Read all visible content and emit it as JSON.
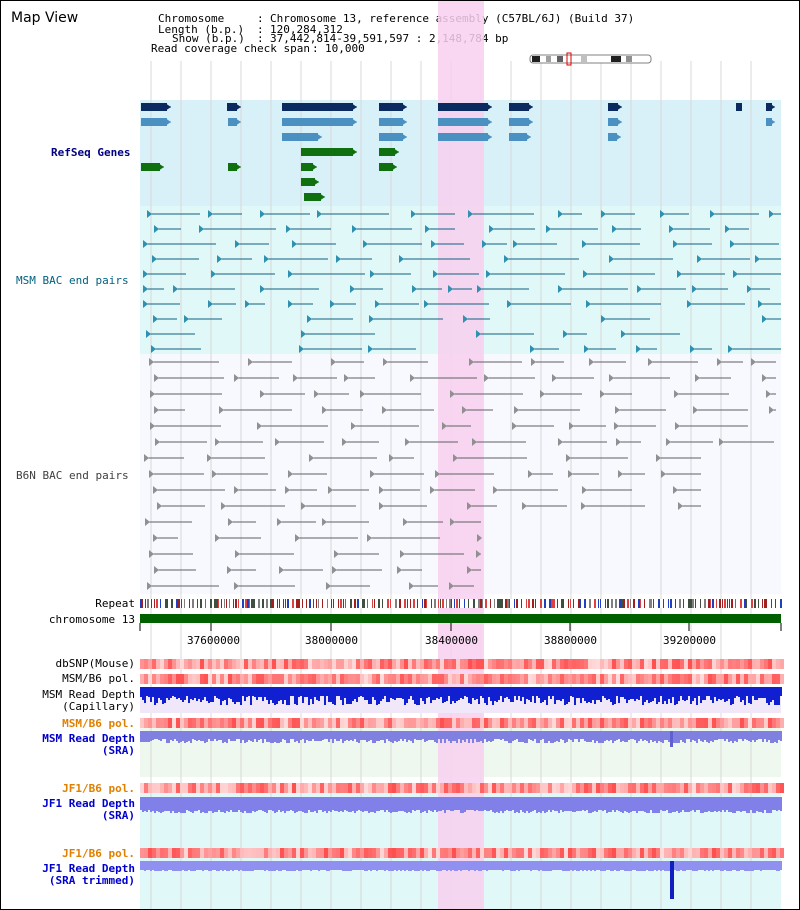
{
  "window_title": "Map View",
  "header": {
    "chromosome_key": "Chromosome",
    "chromosome_val": "Chromosome 13, reference assembly (C57BL/6J) (Build 37)",
    "length_key": "Length (b.p.)",
    "length_val": "120,284,312",
    "show_key": "Show (b.p.)",
    "show_val": "37,442,814-39,591,597 : 2,148,784 bp",
    "coverage_key": "Read coverage check span",
    "coverage_val": "10,000"
  },
  "tracks": {
    "refseq": "RefSeq Genes",
    "msm_bac": "MSM BAC end pairs",
    "b6n_bac": "B6N BAC end pairs",
    "repeat": "Repeat",
    "chromosome": "chromosome 13",
    "dbsnp": "dbSNP(Mouse)",
    "msm_b6_pol_1": "MSM/B6 pol.",
    "msm_read_depth_cap_1": "MSM Read Depth",
    "msm_read_depth_cap_2": "(Capillary)",
    "msm_b6_pol_2": "MSM/B6 pol.",
    "msm_read_depth_sra_1": "MSM Read Depth",
    "msm_read_depth_sra_2": "(SRA)",
    "jf1_b6_pol_1": "JF1/B6 pol.",
    "jf1_read_depth_sra_1": "JF1 Read Depth",
    "jf1_read_depth_sra_2": "(SRA)",
    "jf1_b6_pol_2": "JF1/B6 pol.",
    "jf1_read_depth_trim_1": "JF1 Read Depth",
    "jf1_read_depth_trim_2": "(SRA trimmed)"
  },
  "axis": {
    "ticks": [
      "37600000",
      "38000000",
      "38400000",
      "38800000",
      "39200000"
    ]
  },
  "colors": {
    "label_blue": "#000080",
    "label_teal": "#006080",
    "label_gray": "#404040",
    "label_orange": "#e08000",
    "label_dark_blue": "#0000cc",
    "highlight": "#f8d0f0",
    "refseq_bg": "#d8f0f8",
    "msm_bg": "#e0f8f8",
    "b6n_bg": "#f8f8ff"
  }
}
